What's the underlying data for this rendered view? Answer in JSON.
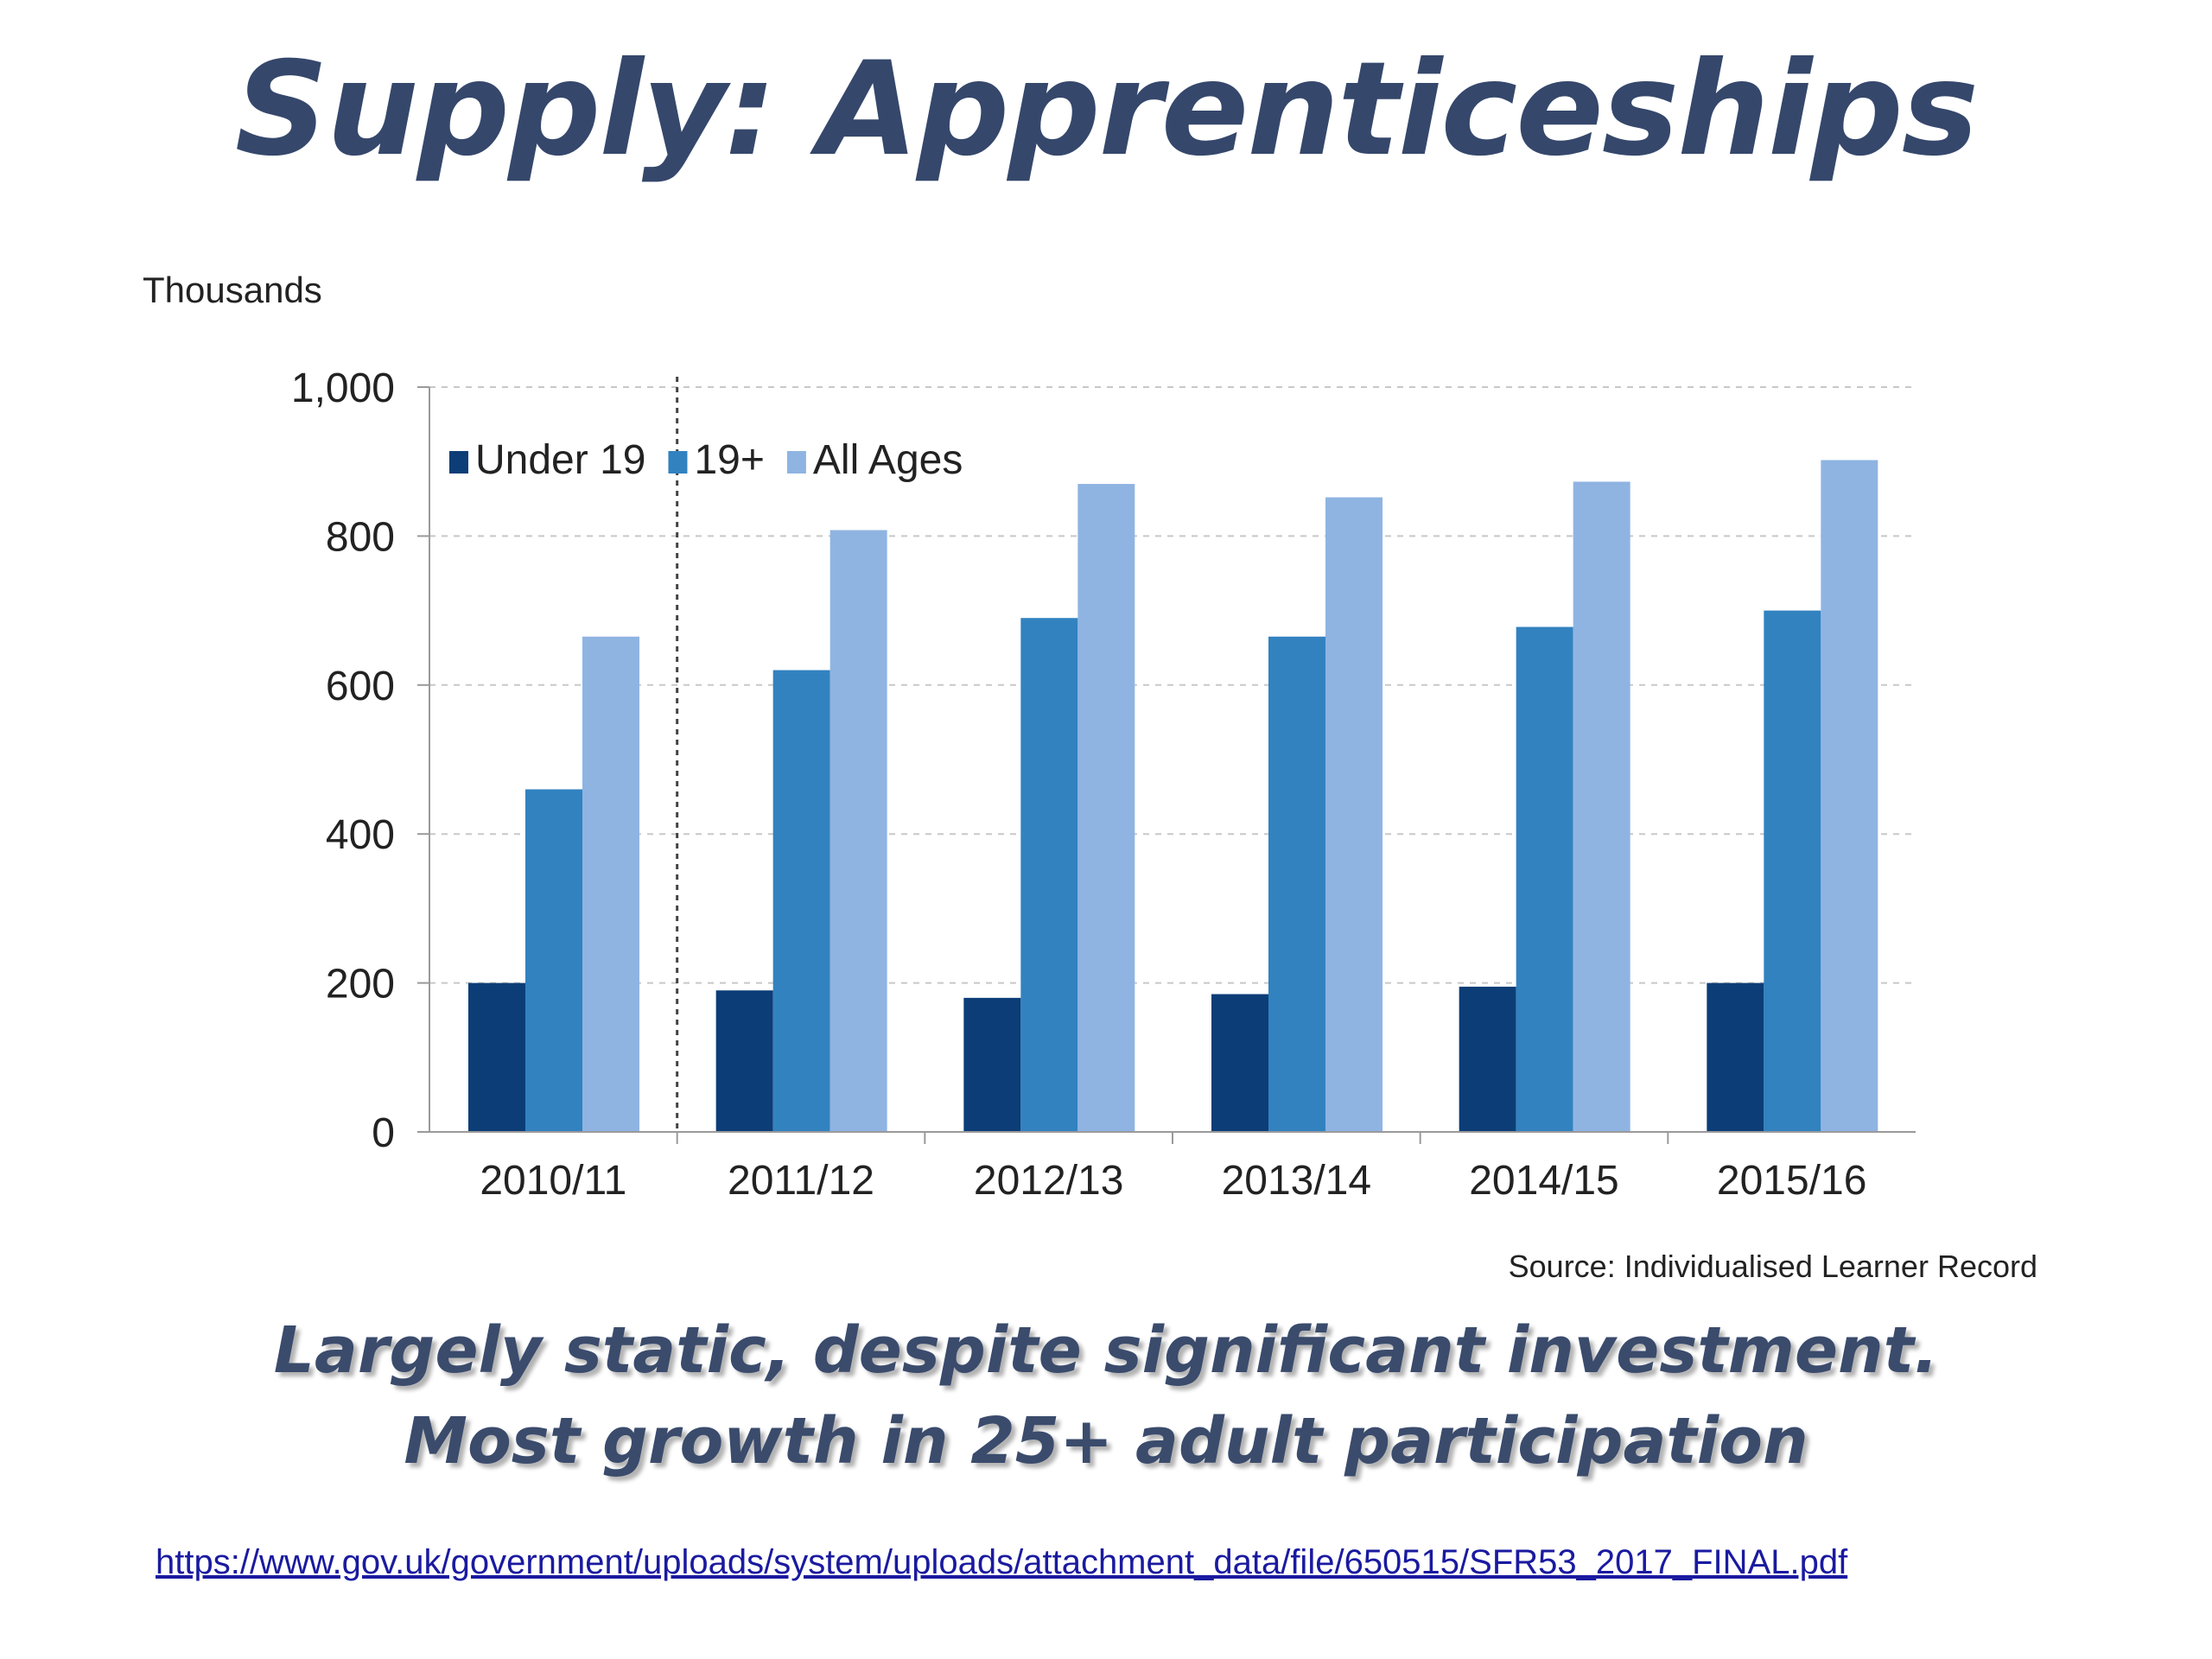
{
  "slide": {
    "title": "Supply: Apprenticeships",
    "caption_line1": "Largely static, despite significant investment.",
    "caption_line2": "Most growth in 25+ adult participation",
    "link": "https://www.gov.uk/government/uploads/system/uploads/attachment_data/file/650515/SFR53_2017_FINAL.pdf"
  },
  "chart_data": {
    "type": "bar",
    "title": "",
    "ylabel": "Thousands",
    "xlabel": "",
    "source": "Source: Individualised Learner Record",
    "categories": [
      "2010/11",
      "2011/12",
      "2012/13",
      "2013/14",
      "2014/15",
      "2015/16"
    ],
    "series": [
      {
        "name": "Under 19",
        "color": "#0c3d77",
        "values": [
          200,
          190,
          180,
          185,
          195,
          200
        ]
      },
      {
        "name": "19+",
        "color": "#3282c0",
        "values": [
          460,
          620,
          690,
          665,
          678,
          700
        ]
      },
      {
        "name": "All Ages",
        "color": "#8fb4e2",
        "values": [
          665,
          808,
          870,
          852,
          873,
          902
        ]
      }
    ],
    "ylim": [
      0,
      1000
    ],
    "yticks": [
      0,
      200,
      400,
      600,
      800,
      1000
    ],
    "ytick_labels": [
      "0",
      "200",
      "400",
      "600",
      "800",
      "1,000"
    ],
    "grid": true,
    "legend_position": "top-left",
    "divider_after_category": "2010/11"
  }
}
